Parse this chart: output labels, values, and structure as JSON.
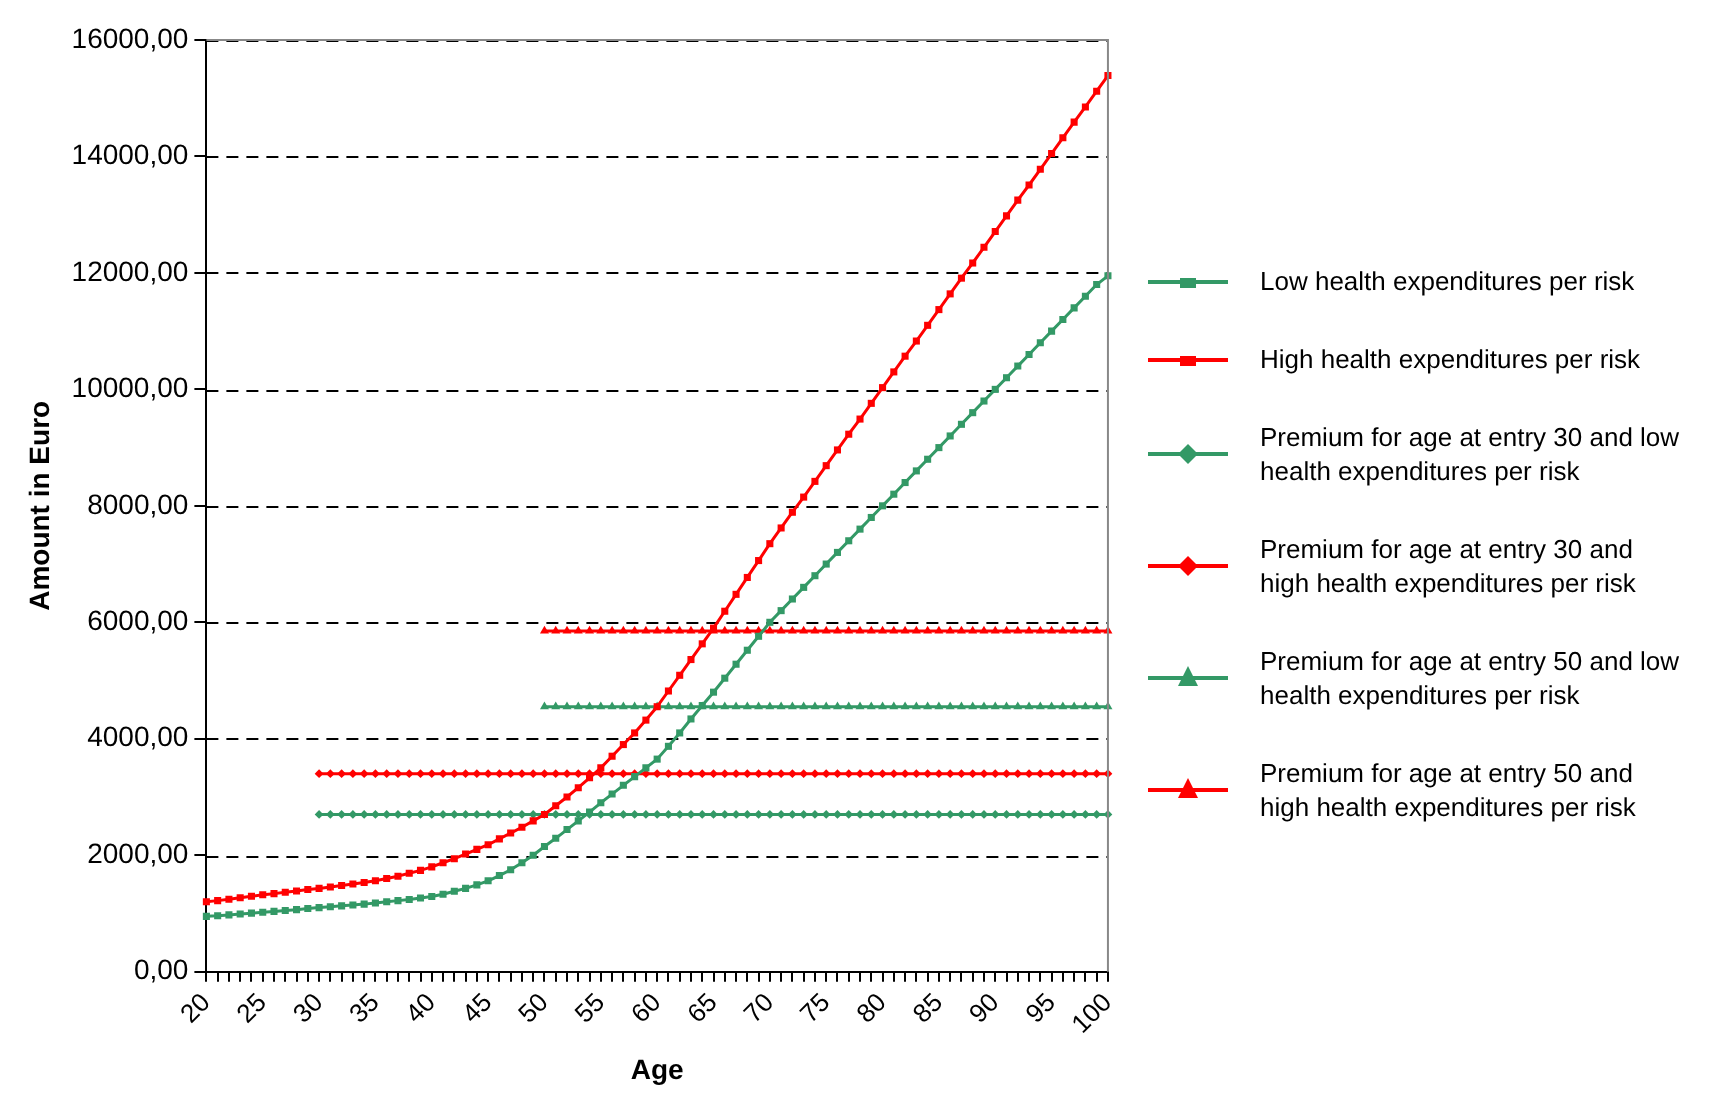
{
  "chart_data": {
    "type": "line",
    "xlabel": "Age",
    "ylabel": "Amount in Euro",
    "categories": [
      "20",
      null,
      null,
      null,
      null,
      "25",
      null,
      null,
      null,
      null,
      "30",
      null,
      null,
      null,
      null,
      "35",
      null,
      null,
      null,
      null,
      "40",
      null,
      null,
      null,
      null,
      "45",
      null,
      null,
      null,
      null,
      "50",
      null,
      null,
      null,
      null,
      "55",
      null,
      null,
      null,
      null,
      "60",
      null,
      null,
      null,
      null,
      "65",
      null,
      null,
      null,
      null,
      "70",
      null,
      null,
      null,
      null,
      "75",
      null,
      null,
      null,
      null,
      "80",
      null,
      null,
      null,
      null,
      "85",
      null,
      null,
      null,
      null,
      "90",
      null,
      null,
      null,
      null,
      "95",
      null,
      null,
      null,
      null,
      "100"
    ],
    "ylim": [
      0,
      16000
    ],
    "yticks": [
      {
        "value": 0,
        "label": "0,00"
      },
      {
        "value": 2000,
        "label": "2000,00"
      },
      {
        "value": 4000,
        "label": "4000,00"
      },
      {
        "value": 6000,
        "label": "6000,00"
      },
      {
        "value": 8000,
        "label": "8000,00"
      },
      {
        "value": 10000,
        "label": "10000,00"
      },
      {
        "value": 12000,
        "label": "12000,00"
      },
      {
        "value": 14000,
        "label": "14000,00"
      },
      {
        "value": 16000,
        "label": "16000,00"
      }
    ],
    "grid": "y",
    "legend": "right",
    "series": [
      {
        "name": "Low health expenditures per risk",
        "color": "#339966",
        "marker": "square",
        "values": [
          950,
          960,
          975,
          990,
          1005,
          1020,
          1035,
          1050,
          1065,
          1085,
          1100,
          1115,
          1130,
          1145,
          1160,
          1180,
          1200,
          1220,
          1240,
          1265,
          1290,
          1330,
          1380,
          1430,
          1490,
          1560,
          1650,
          1750,
          1870,
          2000,
          2150,
          2290,
          2440,
          2590,
          2740,
          2900,
          3050,
          3200,
          3350,
          3500,
          3650,
          3870,
          4100,
          4340,
          4570,
          4800,
          5040,
          5280,
          5520,
          5760,
          6000,
          6200,
          6400,
          6600,
          6800,
          7000,
          7200,
          7400,
          7600,
          7800,
          8000,
          8200,
          8400,
          8600,
          8800,
          9000,
          9200,
          9400,
          9600,
          9800,
          10000,
          10200,
          10400,
          10600,
          10800,
          11000,
          11200,
          11400,
          11600,
          11800,
          11950
        ]
      },
      {
        "name": "High health expenditures per risk",
        "color": "#ff0000",
        "marker": "square",
        "values": [
          1200,
          1220,
          1245,
          1270,
          1295,
          1320,
          1340,
          1365,
          1385,
          1410,
          1430,
          1455,
          1480,
          1505,
          1530,
          1560,
          1600,
          1640,
          1690,
          1740,
          1800,
          1870,
          1940,
          2020,
          2100,
          2180,
          2280,
          2380,
          2480,
          2590,
          2700,
          2850,
          3000,
          3160,
          3330,
          3500,
          3700,
          3900,
          4100,
          4320,
          4550,
          4820,
          5090,
          5360,
          5630,
          5900,
          6190,
          6480,
          6770,
          7060,
          7350,
          7620,
          7890,
          8150,
          8420,
          8690,
          8960,
          9230,
          9490,
          9760,
          10030,
          10300,
          10570,
          10830,
          11100,
          11370,
          11640,
          11910,
          12170,
          12440,
          12710,
          12980,
          13250,
          13510,
          13780,
          14050,
          14320,
          14590,
          14850,
          15120,
          15390
        ]
      },
      {
        "name": "Premium for age at entry 30 and low health expenditures per risk",
        "color": "#339966",
        "marker": "diamond",
        "values": [
          null,
          null,
          null,
          null,
          null,
          null,
          null,
          null,
          null,
          null,
          2700,
          2700,
          2700,
          2700,
          2700,
          2700,
          2700,
          2700,
          2700,
          2700,
          2700,
          2700,
          2700,
          2700,
          2700,
          2700,
          2700,
          2700,
          2700,
          2700,
          2700,
          2700,
          2700,
          2700,
          2700,
          2700,
          2700,
          2700,
          2700,
          2700,
          2700,
          2700,
          2700,
          2700,
          2700,
          2700,
          2700,
          2700,
          2700,
          2700,
          2700,
          2700,
          2700,
          2700,
          2700,
          2700,
          2700,
          2700,
          2700,
          2700,
          2700,
          2700,
          2700,
          2700,
          2700,
          2700,
          2700,
          2700,
          2700,
          2700,
          2700,
          2700,
          2700,
          2700,
          2700,
          2700,
          2700,
          2700,
          2700,
          2700,
          2700
        ]
      },
      {
        "name": "Premium for age at entry 30 and high health expenditures per risk",
        "color": "#ff0000",
        "marker": "diamond",
        "values": [
          null,
          null,
          null,
          null,
          null,
          null,
          null,
          null,
          null,
          null,
          3400,
          3400,
          3400,
          3400,
          3400,
          3400,
          3400,
          3400,
          3400,
          3400,
          3400,
          3400,
          3400,
          3400,
          3400,
          3400,
          3400,
          3400,
          3400,
          3400,
          3400,
          3400,
          3400,
          3400,
          3400,
          3400,
          3400,
          3400,
          3400,
          3400,
          3400,
          3400,
          3400,
          3400,
          3400,
          3400,
          3400,
          3400,
          3400,
          3400,
          3400,
          3400,
          3400,
          3400,
          3400,
          3400,
          3400,
          3400,
          3400,
          3400,
          3400,
          3400,
          3400,
          3400,
          3400,
          3400,
          3400,
          3400,
          3400,
          3400,
          3400,
          3400,
          3400,
          3400,
          3400,
          3400,
          3400,
          3400,
          3400,
          3400,
          3400
        ]
      },
      {
        "name": "Premium for age at entry 50 and low health expenditures per risk",
        "color": "#339966",
        "marker": "triangle",
        "values": [
          null,
          null,
          null,
          null,
          null,
          null,
          null,
          null,
          null,
          null,
          null,
          null,
          null,
          null,
          null,
          null,
          null,
          null,
          null,
          null,
          null,
          null,
          null,
          null,
          null,
          null,
          null,
          null,
          null,
          null,
          4550,
          4550,
          4550,
          4550,
          4550,
          4550,
          4550,
          4550,
          4550,
          4550,
          4550,
          4550,
          4550,
          4550,
          4550,
          4550,
          4550,
          4550,
          4550,
          4550,
          4550,
          4550,
          4550,
          4550,
          4550,
          4550,
          4550,
          4550,
          4550,
          4550,
          4550,
          4550,
          4550,
          4550,
          4550,
          4550,
          4550,
          4550,
          4550,
          4550,
          4550,
          4550,
          4550,
          4550,
          4550,
          4550,
          4550,
          4550,
          4550,
          4550,
          4550
        ]
      },
      {
        "name": "Premium for age at entry 50 and high health expenditures per risk",
        "color": "#ff0000",
        "marker": "triangle",
        "values": [
          null,
          null,
          null,
          null,
          null,
          null,
          null,
          null,
          null,
          null,
          null,
          null,
          null,
          null,
          null,
          null,
          null,
          null,
          null,
          null,
          null,
          null,
          null,
          null,
          null,
          null,
          null,
          null,
          null,
          null,
          5850,
          5850,
          5850,
          5850,
          5850,
          5850,
          5850,
          5850,
          5850,
          5850,
          5850,
          5850,
          5850,
          5850,
          5850,
          5850,
          5850,
          5850,
          5850,
          5850,
          5850,
          5850,
          5850,
          5850,
          5850,
          5850,
          5850,
          5850,
          5850,
          5850,
          5850,
          5850,
          5850,
          5850,
          5850,
          5850,
          5850,
          5850,
          5850,
          5850,
          5850,
          5850,
          5850,
          5850,
          5850,
          5850,
          5850,
          5850,
          5850,
          5850,
          5850
        ]
      }
    ]
  }
}
